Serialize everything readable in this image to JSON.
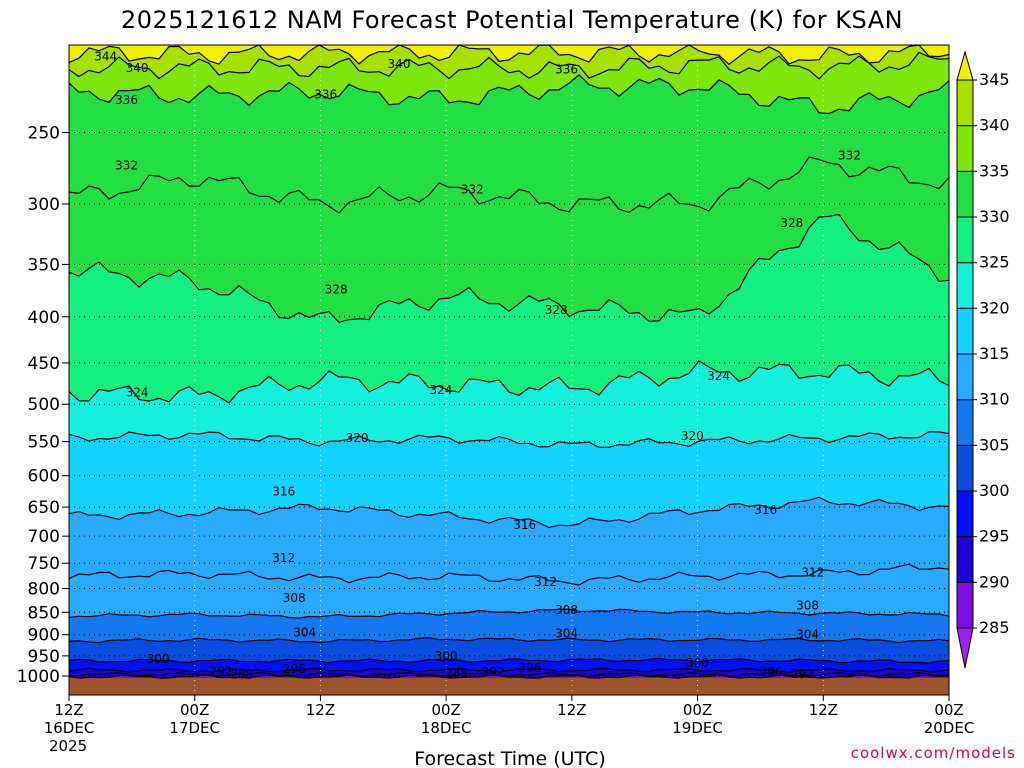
{
  "chart_data": {
    "type": "contour",
    "title": "2025121612 NAM Forecast Potential Temperature (K) for KSAN",
    "xlabel": "Forecast Time (UTC)",
    "ylabel": "",
    "credit": "coolwx.com/models",
    "x_ticks": [
      {
        "hours": 0,
        "line1": "12Z",
        "line2": "16DEC",
        "line3": "2025"
      },
      {
        "hours": 12,
        "line1": "00Z",
        "line2": "17DEC",
        "line3": ""
      },
      {
        "hours": 24,
        "line1": "12Z",
        "line2": "",
        "line3": ""
      },
      {
        "hours": 36,
        "line1": "00Z",
        "line2": "18DEC",
        "line3": ""
      },
      {
        "hours": 48,
        "line1": "12Z",
        "line2": "",
        "line3": ""
      },
      {
        "hours": 60,
        "line1": "00Z",
        "line2": "19DEC",
        "line3": ""
      },
      {
        "hours": 72,
        "line1": "12Z",
        "line2": "",
        "line3": ""
      },
      {
        "hours": 84,
        "line1": "00Z",
        "line2": "20DEC",
        "line3": ""
      }
    ],
    "xlim_hours": [
      0,
      84
    ],
    "y_ticks_hpa": [
      "250",
      "300",
      "350",
      "400",
      "450",
      "500",
      "550",
      "600",
      "650",
      "700",
      "750",
      "800",
      "850",
      "900",
      "950",
      "1000"
    ],
    "ylim_hpa": [
      200,
      1020
    ],
    "y_scale": "log",
    "grid": "dotted",
    "surface_color": "#a0522d",
    "colorbar": {
      "levels": [
        "285",
        "290",
        "295",
        "300",
        "305",
        "310",
        "315",
        "320",
        "325",
        "330",
        "335",
        "340",
        "345"
      ],
      "colors": [
        "#a020f0",
        "#7a10e8",
        "#1e00d8",
        "#0010f8",
        "#0a4be0",
        "#1478f0",
        "#28aaff",
        "#14d2ff",
        "#14f0dc",
        "#14f080",
        "#22e044",
        "#7ee60c",
        "#a8e000",
        "#f0f000"
      ]
    },
    "contour_levels": [
      288,
      292,
      296,
      300,
      304,
      308,
      312,
      316,
      320,
      324,
      328,
      332,
      336,
      340,
      344
    ],
    "contour_pressure_hpa": {
      "288": [
        1002,
        1002,
        1002,
        1002,
        1002,
        1002,
        1002,
        1002
      ],
      "292": [
        996,
        996,
        996,
        996,
        996,
        996,
        996,
        996
      ],
      "296": [
        985,
        986,
        985,
        985,
        985,
        985,
        986,
        985
      ],
      "300": [
        962,
        962,
        962,
        962,
        960,
        960,
        962,
        965
      ],
      "304": [
        915,
        912,
        915,
        910,
        912,
        912,
        912,
        915
      ],
      "308": [
        858,
        855,
        860,
        852,
        845,
        850,
        852,
        855
      ],
      "312": [
        775,
        770,
        780,
        775,
        785,
        775,
        770,
        755
      ],
      "316": [
        665,
        660,
        650,
        665,
        680,
        655,
        640,
        650
      ],
      "320": [
        545,
        540,
        550,
        545,
        555,
        550,
        545,
        540
      ],
      "324": [
        485,
        490,
        470,
        475,
        480,
        460,
        460,
        470
      ],
      "328": [
        355,
        365,
        405,
        380,
        390,
        400,
        310,
        360
      ],
      "332": [
        295,
        280,
        300,
        290,
        300,
        300,
        270,
        285
      ],
      "336": [
        225,
        228,
        225,
        230,
        222,
        222,
        235,
        225
      ],
      "340": [
        212,
        212,
        212,
        212,
        213,
        210,
        212,
        208
      ],
      "344": [
        204,
        205,
        204,
        204,
        204,
        204,
        206,
        203
      ]
    },
    "contour_labels": [
      {
        "level": "344",
        "hours": 3.5,
        "hpa": 206
      },
      {
        "level": "340",
        "hours": 6.5,
        "hpa": 212
      },
      {
        "level": "340",
        "hours": 31.5,
        "hpa": 210
      },
      {
        "level": "336",
        "hours": 47.5,
        "hpa": 213
      },
      {
        "level": "336",
        "hours": 5.5,
        "hpa": 230
      },
      {
        "level": "336",
        "hours": 24.5,
        "hpa": 227
      },
      {
        "level": "332",
        "hours": 5.5,
        "hpa": 272
      },
      {
        "level": "332",
        "hours": 38.5,
        "hpa": 289
      },
      {
        "level": "332",
        "hours": 74.5,
        "hpa": 265
      },
      {
        "level": "328",
        "hours": 25.5,
        "hpa": 373
      },
      {
        "level": "328",
        "hours": 46.5,
        "hpa": 393
      },
      {
        "level": "328",
        "hours": 69,
        "hpa": 315
      },
      {
        "level": "324",
        "hours": 6.5,
        "hpa": 485
      },
      {
        "level": "324",
        "hours": 35.5,
        "hpa": 482
      },
      {
        "level": "324",
        "hours": 62,
        "hpa": 465
      },
      {
        "level": "320",
        "hours": 27.5,
        "hpa": 545
      },
      {
        "level": "320",
        "hours": 59.5,
        "hpa": 542
      },
      {
        "level": "316",
        "hours": 20.5,
        "hpa": 625
      },
      {
        "level": "316",
        "hours": 43.5,
        "hpa": 680
      },
      {
        "level": "316",
        "hours": 66.5,
        "hpa": 655
      },
      {
        "level": "312",
        "hours": 20.5,
        "hpa": 740
      },
      {
        "level": "312",
        "hours": 45.5,
        "hpa": 787
      },
      {
        "level": "312",
        "hours": 71,
        "hpa": 768
      },
      {
        "level": "308",
        "hours": 21.5,
        "hpa": 820
      },
      {
        "level": "308",
        "hours": 47.5,
        "hpa": 845
      },
      {
        "level": "308",
        "hours": 70.5,
        "hpa": 835
      },
      {
        "level": "304",
        "hours": 22.5,
        "hpa": 895
      },
      {
        "level": "304",
        "hours": 47.5,
        "hpa": 897
      },
      {
        "level": "304",
        "hours": 70.5,
        "hpa": 900
      },
      {
        "level": "300",
        "hours": 8.5,
        "hpa": 958
      },
      {
        "level": "300",
        "hours": 36,
        "hpa": 950
      },
      {
        "level": "300",
        "hours": 60,
        "hpa": 968
      },
      {
        "level": "296",
        "hours": 21.5,
        "hpa": 982
      },
      {
        "level": "296",
        "hours": 44,
        "hpa": 980
      },
      {
        "level": "296",
        "hours": 67,
        "hpa": 990
      },
      {
        "level": "292",
        "hours": 14.5,
        "hpa": 988
      },
      {
        "level": "292",
        "hours": 40.5,
        "hpa": 990
      },
      {
        "level": "292",
        "hours": 70,
        "hpa": 995
      },
      {
        "level": "288",
        "hours": 16.5,
        "hpa": 996
      },
      {
        "level": "288",
        "hours": 37,
        "hpa": 993
      }
    ]
  }
}
